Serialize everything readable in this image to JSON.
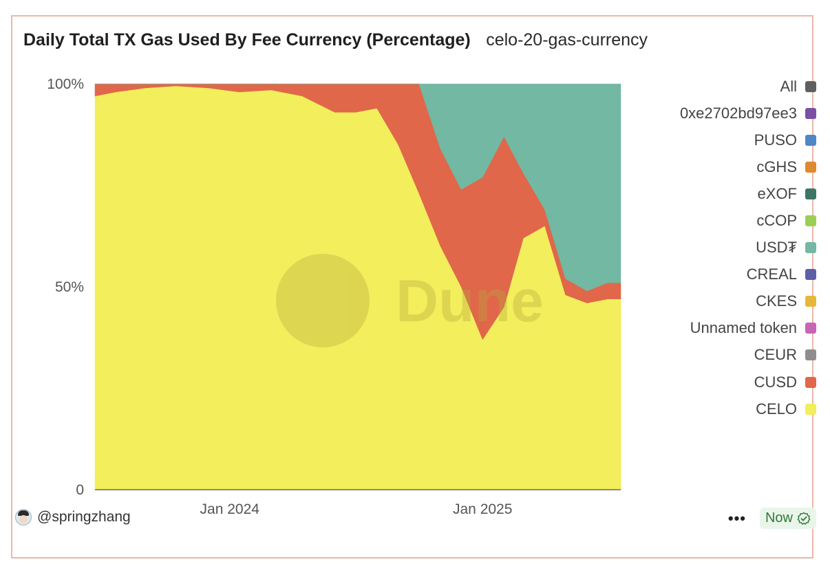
{
  "title": "Daily Total TX Gas Used By Fee Currency (Percentage)",
  "subtitle": "celo-20-gas-currency",
  "author": "@springzhang",
  "status_label": "Now",
  "watermark": "Dune",
  "icons": {
    "avatar": "user-avatar-icon",
    "more": "more-dots-icon",
    "check": "check-circle-icon"
  },
  "chart_data": {
    "type": "area",
    "stacked": true,
    "normalized": true,
    "xlabel": "",
    "ylabel": "",
    "y_ticks": [
      "0",
      "50%",
      "100%"
    ],
    "ylim": [
      0,
      1
    ],
    "x_ticks": [
      {
        "label": "Jan 2024",
        "date": "2024-01-01"
      },
      {
        "label": "Jan 2025",
        "date": "2025-01-01"
      }
    ],
    "xlim": [
      "2023-06-20",
      "2025-07-20"
    ],
    "grid": false,
    "legend_position": "right",
    "legend": [
      {
        "name": "All",
        "color": "#5f5f5f"
      },
      {
        "name": "0xe2702bd97ee3",
        "color": "#7a4fa5"
      },
      {
        "name": "PUSO",
        "color": "#4f86c6"
      },
      {
        "name": "cGHS",
        "color": "#df8a2e"
      },
      {
        "name": "eXOF",
        "color": "#3f7566"
      },
      {
        "name": "cCOP",
        "color": "#9bcf53"
      },
      {
        "name": "USD₮",
        "color": "#72b8a2"
      },
      {
        "name": "CREAL",
        "color": "#5c5ea8"
      },
      {
        "name": "CKES",
        "color": "#e6b839"
      },
      {
        "name": "Unnamed token",
        "color": "#c965b5"
      },
      {
        "name": "CEUR",
        "color": "#8e8e8e"
      },
      {
        "name": "CUSD",
        "color": "#e0674a"
      },
      {
        "name": "CELO",
        "color": "#f2ee5c"
      }
    ],
    "dates": [
      "2023-06-20",
      "2023-07-20",
      "2023-09-01",
      "2023-10-15",
      "2023-12-01",
      "2024-01-15",
      "2024-03-01",
      "2024-04-15",
      "2024-06-01",
      "2024-07-01",
      "2024-08-01",
      "2024-09-01",
      "2024-10-01",
      "2024-11-01",
      "2024-12-01",
      "2025-01-01",
      "2025-02-01",
      "2025-03-01",
      "2025-04-01",
      "2025-05-01",
      "2025-06-01",
      "2025-07-01",
      "2025-07-20"
    ],
    "series": [
      {
        "name": "CELO",
        "color": "#f2ee5c",
        "values": [
          0.97,
          0.98,
          0.99,
          0.995,
          0.99,
          0.98,
          0.985,
          0.97,
          0.93,
          0.93,
          0.94,
          0.85,
          0.73,
          0.6,
          0.5,
          0.37,
          0.45,
          0.62,
          0.65,
          0.48,
          0.46,
          0.47,
          0.47
        ]
      },
      {
        "name": "CUSD",
        "color": "#e0674a",
        "values": [
          0.03,
          0.02,
          0.01,
          0.005,
          0.01,
          0.02,
          0.015,
          0.03,
          0.07,
          0.07,
          0.06,
          0.15,
          0.27,
          0.24,
          0.24,
          0.4,
          0.42,
          0.16,
          0.04,
          0.04,
          0.03,
          0.04,
          0.04
        ]
      },
      {
        "name": "USD₮",
        "color": "#72b8a2",
        "values": [
          0,
          0,
          0,
          0,
          0,
          0,
          0,
          0,
          0,
          0,
          0,
          0,
          0,
          0.16,
          0.26,
          0.23,
          0.13,
          0.22,
          0.31,
          0.48,
          0.51,
          0.49,
          0.49
        ]
      }
    ]
  }
}
